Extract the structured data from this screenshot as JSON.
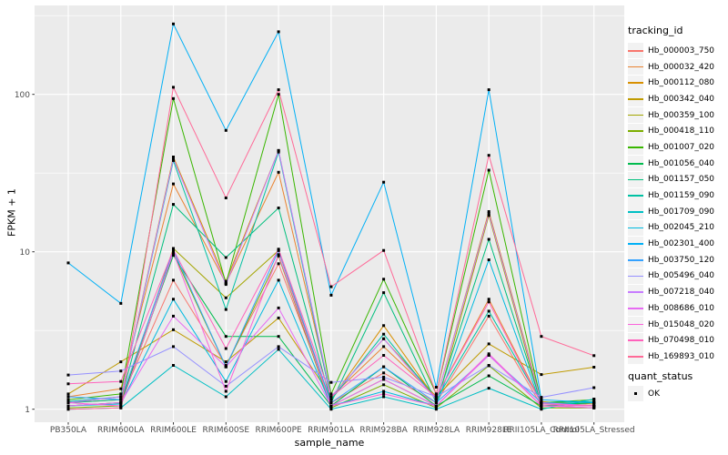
{
  "chart_data": {
    "type": "line",
    "xlabel": "sample_name",
    "ylabel": "FPKM + 1",
    "legend_title": "tracking_id",
    "quant_legend": {
      "title": "quant_status",
      "items": [
        {
          "label": "OK",
          "marker": "black-square"
        }
      ]
    },
    "y_scale": "log10",
    "y_ticks": [
      1,
      10,
      100
    ],
    "y_tick_labels": [
      "1",
      "10",
      "100"
    ],
    "y_minor_ticks": [
      3.162,
      31.62,
      316.2
    ],
    "ylim": [
      1,
      370
    ],
    "grid": true,
    "legend_position": "right",
    "panel_bg": "#EBEBEB",
    "gridline_color": "#FFFFFF",
    "tick_color": "#333333",
    "tick_label_color": "#4D4D4D",
    "point_color": "#000000",
    "categories": [
      "PB350LA",
      "RRIM600LA",
      "RRIM600LE",
      "RRIM600SE",
      "RRIM600PE",
      "RRIM901LA",
      "RRIM928BA",
      "RRIM928LA",
      "RRIM928LE",
      "RRII105LA_Control",
      "RRII105LA_Stressed"
    ],
    "series": [
      {
        "name": "Hb_000003_750",
        "color": "#F8766D",
        "values": [
          1.1,
          1.15,
          6.6,
          1.9,
          8.4,
          1.1,
          1.7,
          1.1,
          3.9,
          1.05,
          1.05
        ]
      },
      {
        "name": "Hb_000032_420",
        "color": "#EA8331",
        "values": [
          1.2,
          1.35,
          27,
          6.3,
          32,
          1.2,
          2.5,
          1.2,
          5.0,
          1.1,
          1.08
        ]
      },
      {
        "name": "Hb_000112_080",
        "color": "#D89000",
        "values": [
          1.1,
          1.2,
          40,
          6.5,
          44,
          1.15,
          3.4,
          1.15,
          18,
          1.12,
          1.05
        ]
      },
      {
        "name": "Hb_000342_040",
        "color": "#C09B00",
        "values": [
          1.25,
          2.0,
          3.2,
          2.0,
          3.8,
          1.2,
          2.8,
          1.2,
          2.6,
          1.66,
          1.85
        ]
      },
      {
        "name": "Hb_000359_100",
        "color": "#A3A500",
        "values": [
          1.05,
          1.1,
          10.5,
          5.1,
          10.2,
          1.05,
          1.55,
          1.05,
          17,
          1.05,
          1.02
        ]
      },
      {
        "name": "Hb_000418_110",
        "color": "#7CAE00",
        "values": [
          1.02,
          1.05,
          9.8,
          1.86,
          9.4,
          1.02,
          1.43,
          1.02,
          1.89,
          1.02,
          1.02
        ]
      },
      {
        "name": "Hb_001007_020",
        "color": "#39B600",
        "values": [
          1.15,
          1.25,
          94,
          6.3,
          100,
          1.25,
          6.7,
          1.25,
          33,
          1.1,
          1.15
        ]
      },
      {
        "name": "Hb_001056_040",
        "color": "#00BB4E",
        "values": [
          1.05,
          1.1,
          9.5,
          2.9,
          2.9,
          1.05,
          1.86,
          1.05,
          1.63,
          1.05,
          1.1
        ]
      },
      {
        "name": "Hb_001157_050",
        "color": "#00BF7D",
        "values": [
          1.1,
          1.15,
          20,
          9.2,
          19,
          1.1,
          5.5,
          1.1,
          12,
          1.08,
          1.1
        ]
      },
      {
        "name": "Hb_001159_090",
        "color": "#00C1A3",
        "values": [
          1.12,
          1.2,
          38,
          4.3,
          43,
          1.15,
          3.0,
          1.15,
          4.2,
          1.1,
          1.12
        ]
      },
      {
        "name": "Hb_001709_090",
        "color": "#00BFC4",
        "values": [
          1.0,
          1.02,
          1.9,
          1.2,
          2.4,
          1.0,
          1.2,
          1.0,
          1.36,
          1.0,
          1.16
        ]
      },
      {
        "name": "Hb_002045_210",
        "color": "#00BAE0",
        "values": [
          1.05,
          1.08,
          5.0,
          1.5,
          6.6,
          1.05,
          1.3,
          1.05,
          8.9,
          1.05,
          1.05
        ]
      },
      {
        "name": "Hb_002301_400",
        "color": "#00B0F6",
        "values": [
          8.5,
          4.7,
          280,
          59,
          250,
          5.3,
          27.7,
          1.38,
          107,
          1.15,
          1.1
        ]
      },
      {
        "name": "Hb_003750_120",
        "color": "#35A2FF",
        "values": [
          1.2,
          1.15,
          10.2,
          1.86,
          10.2,
          1.1,
          1.86,
          1.1,
          2.2,
          1.1,
          1.05
        ]
      },
      {
        "name": "Hb_005496_040",
        "color": "#9590FF",
        "values": [
          1.65,
          1.75,
          2.5,
          1.4,
          2.5,
          1.48,
          1.6,
          1.2,
          1.9,
          1.19,
          1.37
        ]
      },
      {
        "name": "Hb_007218_040",
        "color": "#C77CFF",
        "values": [
          1.1,
          1.2,
          39,
          6.2,
          44,
          1.2,
          2.8,
          1.15,
          17.5,
          1.1,
          1.05
        ]
      },
      {
        "name": "Hb_008686_010",
        "color": "#E76BF3",
        "values": [
          1.05,
          1.1,
          3.9,
          1.86,
          4.4,
          1.05,
          1.55,
          1.05,
          2.2,
          1.05,
          1.02
        ]
      },
      {
        "name": "Hb_015048_020",
        "color": "#FA62DB",
        "values": [
          1.1,
          1.05,
          9.9,
          1.3,
          9.6,
          1.05,
          1.25,
          1.05,
          2.25,
          1.05,
          1.05
        ]
      },
      {
        "name": "Hb_070498_010",
        "color": "#FF62BC",
        "values": [
          1.45,
          1.5,
          10.3,
          2.43,
          10.4,
          1.2,
          2.2,
          1.2,
          4.8,
          1.08,
          1.05
        ]
      },
      {
        "name": "Hb_169893_010",
        "color": "#FF6A98",
        "values": [
          1.0,
          1.02,
          111,
          22,
          107,
          6.0,
          10.2,
          1.25,
          41,
          2.9,
          2.19
        ]
      }
    ]
  }
}
